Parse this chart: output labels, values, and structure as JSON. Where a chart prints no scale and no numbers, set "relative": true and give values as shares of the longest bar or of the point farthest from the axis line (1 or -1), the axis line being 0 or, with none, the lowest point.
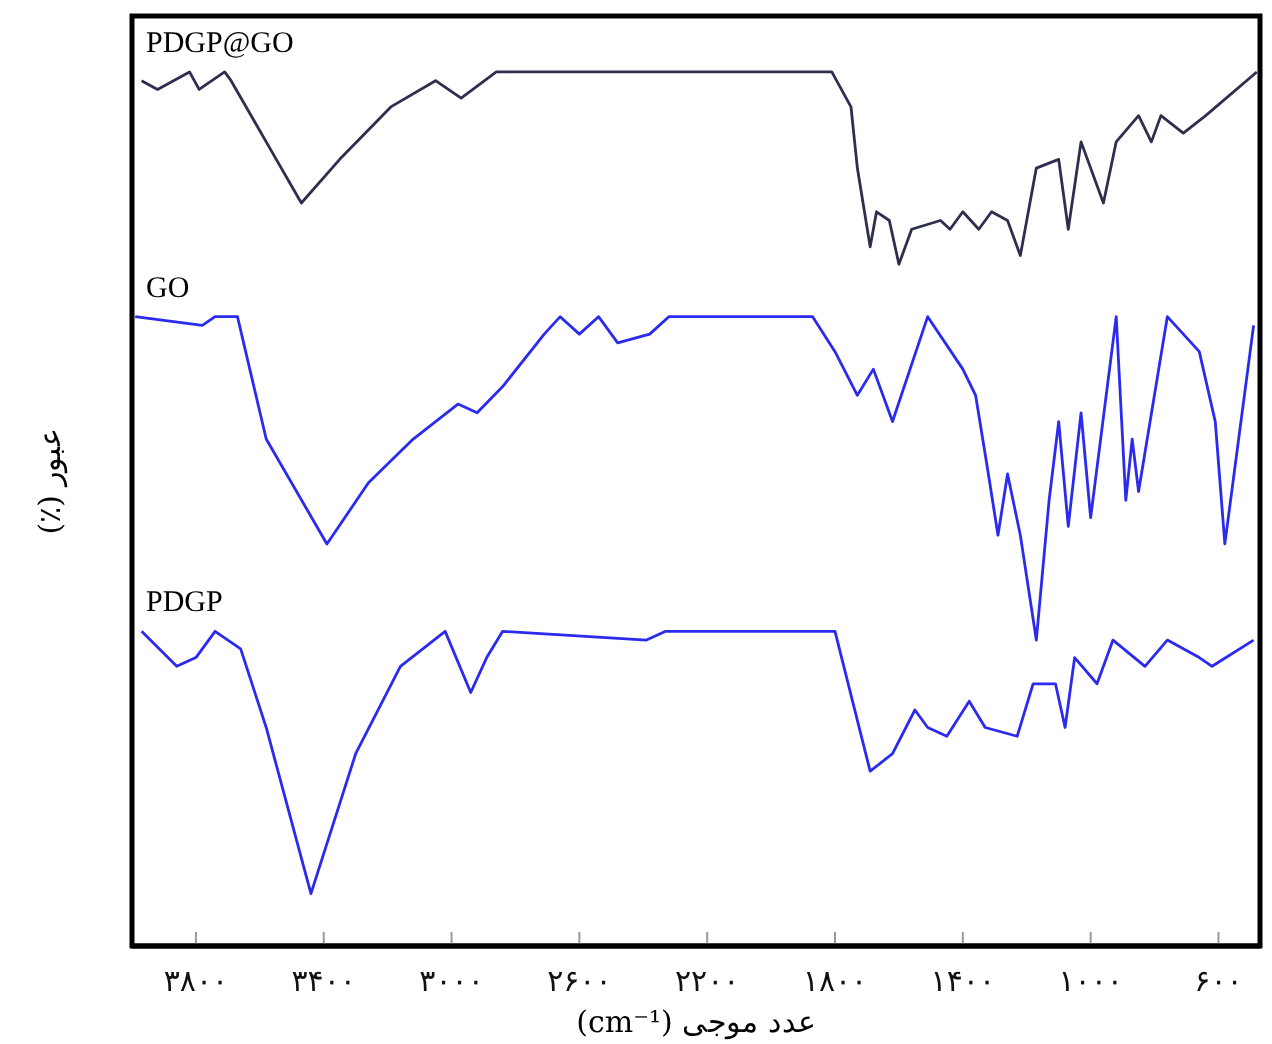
{
  "chart_data": {
    "type": "line",
    "relative": true,
    "xlabel": "عدد موجی (cm⁻¹)",
    "ylabel": "عبور (٪)",
    "xlim": [
      4000,
      470
    ],
    "xticks": [
      {
        "value": 3800,
        "label": "۳۸۰۰"
      },
      {
        "value": 3400,
        "label": "۳۴۰۰"
      },
      {
        "value": 3000,
        "label": "۳۰۰۰"
      },
      {
        "value": 2600,
        "label": "۲۶۰۰"
      },
      {
        "value": 2200,
        "label": "۲۲۰۰"
      },
      {
        "value": 1800,
        "label": "۱۸۰۰"
      },
      {
        "value": 1400,
        "label": "۱۴۰۰"
      },
      {
        "value": 1000,
        "label": "۱۰۰۰"
      },
      {
        "value": 600,
        "label": "۶۰۰"
      }
    ],
    "grid": false,
    "legend": false,
    "marker": "none",
    "line_style": "solid",
    "series": [
      {
        "name": "PDGP@GO",
        "color": "#2e2e4e",
        "x": [
          3970,
          3920,
          3820,
          3790,
          3710,
          3690,
          3580,
          3470,
          3350,
          3190,
          3050,
          2970,
          2860,
          2420,
          1810,
          1750,
          1730,
          1690,
          1670,
          1630,
          1600,
          1560,
          1470,
          1440,
          1400,
          1350,
          1310,
          1260,
          1220,
          1170,
          1100,
          1070,
          1030,
          960,
          920,
          850,
          810,
          780,
          710,
          640,
          480
        ],
        "values": [
          0.99,
          0.98,
          1.0,
          0.98,
          1.0,
          0.99,
          0.92,
          0.85,
          0.9,
          0.96,
          0.99,
          0.97,
          1.0,
          1.0,
          1.0,
          0.96,
          0.89,
          0.8,
          0.84,
          0.83,
          0.78,
          0.82,
          0.83,
          0.82,
          0.84,
          0.82,
          0.84,
          0.83,
          0.79,
          0.89,
          0.9,
          0.82,
          0.92,
          0.85,
          0.92,
          0.95,
          0.92,
          0.95,
          0.93,
          0.95,
          1.0
        ]
      },
      {
        "name": "GO",
        "color": "#2b2bf0",
        "x": [
          3990,
          3780,
          3740,
          3670,
          3580,
          3390,
          3260,
          3120,
          2980,
          2920,
          2840,
          2710,
          2660,
          2600,
          2540,
          2480,
          2380,
          2320,
          1870,
          1800,
          1730,
          1680,
          1620,
          1510,
          1400,
          1360,
          1320,
          1290,
          1260,
          1220,
          1170,
          1130,
          1100,
          1070,
          1030,
          1000,
          920,
          890,
          870,
          850,
          760,
          660,
          610,
          580,
          490
        ],
        "values": [
          0.72,
          0.71,
          0.72,
          0.72,
          0.58,
          0.46,
          0.53,
          0.58,
          0.62,
          0.61,
          0.64,
          0.7,
          0.72,
          0.7,
          0.72,
          0.69,
          0.7,
          0.72,
          0.72,
          0.68,
          0.63,
          0.66,
          0.6,
          0.72,
          0.66,
          0.63,
          0.54,
          0.47,
          0.54,
          0.47,
          0.35,
          0.51,
          0.6,
          0.48,
          0.61,
          0.49,
          0.72,
          0.51,
          0.58,
          0.52,
          0.72,
          0.68,
          0.6,
          0.46,
          0.71
        ]
      },
      {
        "name": "PDGP",
        "color": "#2b2bf0",
        "x": [
          3970,
          3860,
          3800,
          3740,
          3660,
          3580,
          3440,
          3300,
          3160,
          3020,
          2940,
          2890,
          2840,
          2390,
          2330,
          1800,
          1690,
          1620,
          1550,
          1510,
          1450,
          1380,
          1330,
          1230,
          1180,
          1110,
          1080,
          1050,
          980,
          930,
          830,
          760,
          660,
          620,
          490
        ],
        "values": [
          0.36,
          0.32,
          0.33,
          0.36,
          0.34,
          0.25,
          0.06,
          0.22,
          0.32,
          0.36,
          0.29,
          0.33,
          0.36,
          0.35,
          0.36,
          0.36,
          0.2,
          0.22,
          0.27,
          0.25,
          0.24,
          0.28,
          0.25,
          0.24,
          0.3,
          0.3,
          0.25,
          0.33,
          0.3,
          0.35,
          0.32,
          0.35,
          0.33,
          0.32,
          0.35
        ]
      }
    ]
  }
}
